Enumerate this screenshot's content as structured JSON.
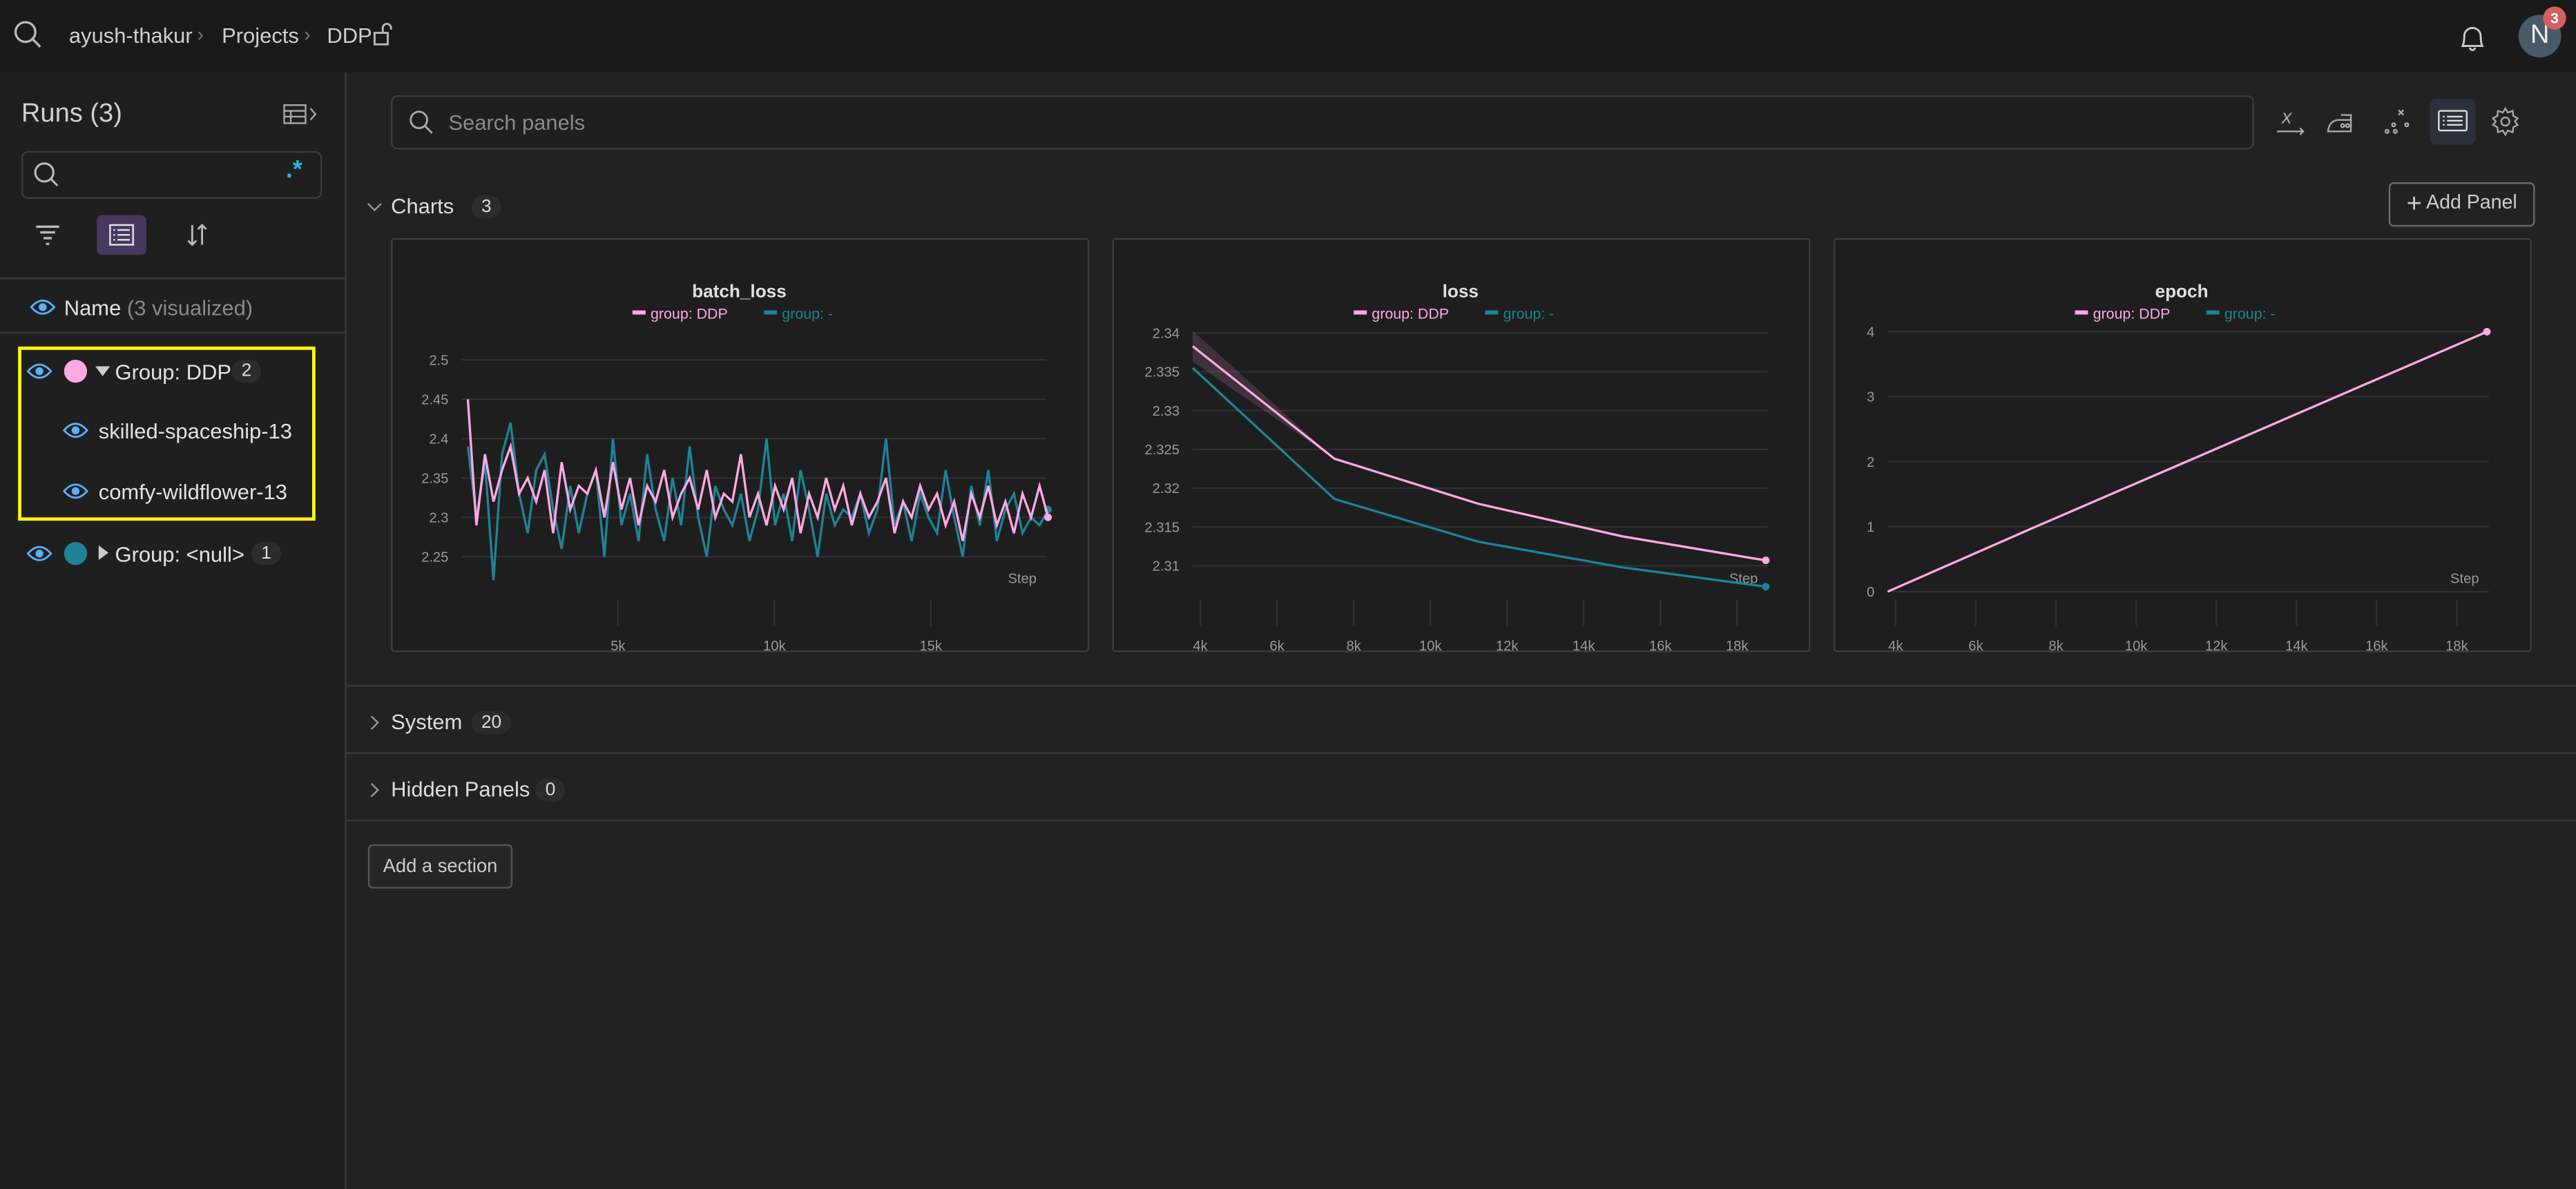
{
  "header": {
    "breadcrumb": [
      "ayush-thakur",
      "Projects",
      "DDP"
    ],
    "notifications_count": "3",
    "avatar_initial": "N"
  },
  "sidebar": {
    "title": "Runs (3)",
    "search_value": "",
    "regex_label": ".*",
    "name_header": "Name",
    "name_header_sub": "(3 visualized)",
    "groups": [
      {
        "label": "Group: DDP",
        "count": "2",
        "color": "#ffa8e4",
        "expanded": true,
        "runs": [
          "skilled-spaceship-13",
          "comfy-wildflower-13"
        ]
      },
      {
        "label": "Group: <null>",
        "count": "1",
        "color": "#1f8296",
        "expanded": false,
        "runs": []
      }
    ]
  },
  "toolbar": {
    "search_placeholder": "Search panels",
    "icons": [
      "x-axis-icon",
      "smoothing-iron-icon",
      "outliers-icon",
      "layout-list-icon",
      "settings-gear-icon"
    ]
  },
  "sections": {
    "charts": {
      "label": "Charts",
      "count": "3",
      "add_panel": "Add Panel"
    },
    "system": {
      "label": "System",
      "count": "20"
    },
    "hidden": {
      "label": "Hidden Panels",
      "count": "0"
    },
    "add_section": "Add a section"
  },
  "colors": {
    "ddp": "#ffa8e4",
    "null": "#1f8296",
    "highlight": "#ffff00"
  },
  "chart_data": [
    {
      "type": "line",
      "title": "batch_loss",
      "xlabel": "Step",
      "legend": [
        "group: DDP",
        "group: -"
      ],
      "xlim": [
        0,
        18700
      ],
      "ylim": [
        2.204,
        2.544
      ],
      "xticks": [
        5000,
        10000,
        15000
      ],
      "xtick_labels": [
        "5k",
        "10k",
        "15k"
      ],
      "yticks": [
        2.25,
        2.3,
        2.35,
        2.4,
        2.45,
        2.5
      ],
      "ytick_labels": [
        "2.25",
        "2.3",
        "2.35",
        "2.4",
        "2.45",
        "2.5"
      ],
      "x_start": 200,
      "x_end": 18750,
      "series": [
        {
          "name": "group: DDP",
          "color": "#ffa8e4",
          "values": [
            2.45,
            2.29,
            2.38,
            2.32,
            2.36,
            2.39,
            2.33,
            2.35,
            2.32,
            2.36,
            2.28,
            2.37,
            2.31,
            2.34,
            2.33,
            2.36,
            2.3,
            2.37,
            2.31,
            2.35,
            2.29,
            2.34,
            2.32,
            2.36,
            2.3,
            2.33,
            2.35,
            2.31,
            2.36,
            2.3,
            2.33,
            2.32,
            2.38,
            2.3,
            2.33,
            2.29,
            2.34,
            2.31,
            2.35,
            2.28,
            2.33,
            2.3,
            2.35,
            2.31,
            2.34,
            2.29,
            2.33,
            2.3,
            2.32,
            2.35,
            2.28,
            2.32,
            2.3,
            2.34,
            2.31,
            2.33,
            2.29,
            2.32,
            2.27,
            2.33,
            2.3,
            2.34,
            2.29,
            2.32,
            2.28,
            2.33,
            2.3,
            2.34,
            2.3
          ]
        },
        {
          "name": "group: -",
          "color": "#1f8296",
          "values": [
            2.39,
            2.3,
            2.37,
            2.22,
            2.38,
            2.42,
            2.33,
            2.28,
            2.36,
            2.38,
            2.31,
            2.26,
            2.34,
            2.28,
            2.33,
            2.36,
            2.25,
            2.4,
            2.29,
            2.33,
            2.27,
            2.38,
            2.31,
            2.27,
            2.35,
            2.29,
            2.39,
            2.3,
            2.25,
            2.34,
            2.31,
            2.29,
            2.33,
            2.27,
            2.31,
            2.4,
            2.29,
            2.33,
            2.27,
            2.36,
            2.31,
            2.25,
            2.33,
            2.29,
            2.31,
            2.3,
            2.33,
            2.28,
            2.31,
            2.4,
            2.29,
            2.32,
            2.27,
            2.33,
            2.3,
            2.28,
            2.36,
            2.3,
            2.25,
            2.34,
            2.29,
            2.36,
            2.27,
            2.31,
            2.33,
            2.28,
            2.3,
            2.29,
            2.31
          ]
        }
      ]
    },
    {
      "type": "line",
      "title": "loss",
      "xlabel": "Step",
      "legend": [
        "group: DDP",
        "group: -"
      ],
      "xlim": [
        3800,
        18800
      ],
      "ylim": [
        2.3065,
        2.341
      ],
      "xticks": [
        4000,
        6000,
        8000,
        10000,
        12000,
        14000,
        16000,
        18000
      ],
      "xtick_labels": [
        "4k",
        "6k",
        "8k",
        "10k",
        "12k",
        "14k",
        "16k",
        "18k"
      ],
      "yticks": [
        2.31,
        2.315,
        2.32,
        2.325,
        2.33,
        2.335,
        2.34
      ],
      "ytick_labels": [
        "2.31",
        "2.315",
        "2.32",
        "2.325",
        "2.33",
        "2.335",
        "2.34"
      ],
      "series": [
        {
          "name": "group: DDP",
          "color": "#ffa8e4",
          "x": [
            3800,
            7500,
            11250,
            15000,
            18750
          ],
          "values": [
            2.3383,
            2.3238,
            2.318,
            2.3138,
            2.3107
          ],
          "band_low": [
            2.3363,
            2.3238,
            2.318,
            2.3138,
            2.3107
          ],
          "band_high": [
            2.3403,
            2.3238,
            2.318,
            2.3138,
            2.3107
          ]
        },
        {
          "name": "group: -",
          "color": "#1f8296",
          "x": [
            3800,
            7500,
            11250,
            15000,
            18750
          ],
          "values": [
            2.3355,
            2.3186,
            2.3131,
            2.3098,
            2.3073
          ]
        }
      ]
    },
    {
      "type": "line",
      "title": "epoch",
      "xlabel": "Step",
      "legend": [
        "group: DDP",
        "group: -"
      ],
      "xlim": [
        3800,
        18800
      ],
      "ylim": [
        -0.02,
        4.1
      ],
      "xticks": [
        4000,
        6000,
        8000,
        10000,
        12000,
        14000,
        16000,
        18000
      ],
      "xtick_labels": [
        "4k",
        "6k",
        "8k",
        "10k",
        "12k",
        "14k",
        "16k",
        "18k"
      ],
      "yticks": [
        0,
        1,
        2,
        3,
        4
      ],
      "ytick_labels": [
        "0",
        "1",
        "2",
        "3",
        "4"
      ],
      "series": [
        {
          "name": "group: DDP",
          "color": "#ffa8e4",
          "x": [
            3800,
            7500,
            11250,
            15000,
            18750
          ],
          "values": [
            0,
            1,
            2,
            3,
            4
          ]
        }
      ]
    }
  ]
}
